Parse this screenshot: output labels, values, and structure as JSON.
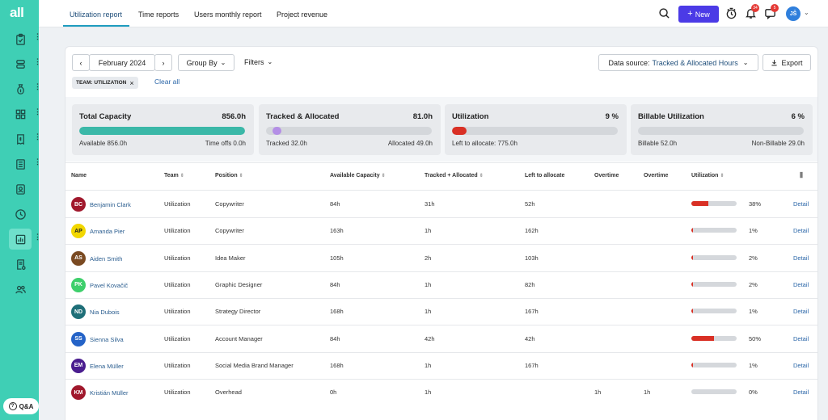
{
  "sidebar": {
    "logo": "all",
    "qa_label": "Q&A"
  },
  "tabs": [
    "Utilization report",
    "Time reports",
    "Users monthly report",
    "Project revenue"
  ],
  "header": {
    "new_label": "New",
    "badge_notifications": "34",
    "badge_messages": "5",
    "user_initials": "JŠ"
  },
  "toolbar": {
    "month": "February 2024",
    "group_by": "Group By",
    "filters": "Filters",
    "data_source_label": "Data source:",
    "data_source_value": "Tracked & Allocated Hours",
    "export_label": "Export",
    "chip": "TEAM: UTILIZATION",
    "clear_all": "Clear all"
  },
  "stats": [
    {
      "title": "Total Capacity",
      "value": "856.0h",
      "fill": 1.0,
      "color": "#3bb8a8",
      "left": "Available 856.0h",
      "right": "Time offs 0.0h"
    },
    {
      "title": "Tracked & Allocated",
      "value": "81.0h",
      "fill": 0.0,
      "color": "#b48fe6",
      "left": "Tracked 32.0h",
      "right": "Allocated 49.0h"
    },
    {
      "title": "Utilization",
      "value": "9 %",
      "fill": 0.09,
      "color": "#d93025",
      "left": "Left to allocate: 775.0h",
      "right": ""
    },
    {
      "title": "Billable Utilization",
      "value": "6 %",
      "fill": 0.0,
      "color": "#d93025",
      "left": "Billable 52.0h",
      "right": "Non-Billable 29.0h"
    }
  ],
  "columns": [
    "Name",
    "Team",
    "Position",
    "Available Capacity",
    "Tracked + Allocated",
    "Left to allocate",
    "Overtime",
    "Overtime",
    "Utilization"
  ],
  "rows": [
    {
      "initials": "BC",
      "color": "#a0182c",
      "name": "Benjamin Clark",
      "team": "Utilization",
      "position": "Copywriter",
      "capacity": "84h",
      "tracked": "31h",
      "left": "52h",
      "ot1": "",
      "ot2": "",
      "util": "38%",
      "util_value": 0.38,
      "detail": "Detail"
    },
    {
      "initials": "AP",
      "color": "#f2d700",
      "text": "#222",
      "name": "Amanda Pier",
      "team": "Utilization",
      "position": "Copywriter",
      "capacity": "163h",
      "tracked": "1h",
      "left": "162h",
      "ot1": "",
      "ot2": "",
      "util": "1%",
      "util_value": 0.01,
      "detail": "Detail"
    },
    {
      "initials": "AS",
      "color": "#7a4a22",
      "name": "Aiden Smith",
      "team": "Utilization",
      "position": "Idea Maker",
      "capacity": "105h",
      "tracked": "2h",
      "left": "103h",
      "ot1": "",
      "ot2": "",
      "util": "2%",
      "util_value": 0.02,
      "detail": "Detail"
    },
    {
      "initials": "PK",
      "color": "#3ecf6b",
      "name": "Pavel Kovačič",
      "team": "Utilization",
      "position": "Graphic Designer",
      "capacity": "84h",
      "tracked": "1h",
      "left": "82h",
      "ot1": "",
      "ot2": "",
      "util": "2%",
      "util_value": 0.02,
      "detail": "Detail"
    },
    {
      "initials": "ND",
      "color": "#1f6f78",
      "name": "Nia Dubois",
      "team": "Utilization",
      "position": "Strategy Director",
      "capacity": "168h",
      "tracked": "1h",
      "left": "167h",
      "ot1": "",
      "ot2": "",
      "util": "1%",
      "util_value": 0.01,
      "detail": "Detail"
    },
    {
      "initials": "SS",
      "color": "#2463c7",
      "name": "Sienna Silva",
      "team": "Utilization",
      "position": "Account Manager",
      "capacity": "84h",
      "tracked": "42h",
      "left": "42h",
      "ot1": "",
      "ot2": "",
      "util": "50%",
      "util_value": 0.5,
      "detail": "Detail"
    },
    {
      "initials": "EM",
      "color": "#4a1d8f",
      "name": "Elena Müller",
      "team": "Utilization",
      "position": "Social Media Brand Manager",
      "capacity": "168h",
      "tracked": "1h",
      "left": "167h",
      "ot1": "",
      "ot2": "",
      "util": "1%",
      "util_value": 0.01,
      "detail": "Detail"
    },
    {
      "initials": "KM",
      "color": "#a0182c",
      "name": "Kristián Müller",
      "team": "Utilization",
      "position": "Overhead",
      "capacity": "0h",
      "tracked": "1h",
      "left": "",
      "ot1": "1h",
      "ot2": "1h",
      "util": "0%",
      "util_value": 0.0,
      "detail": "Detail"
    }
  ]
}
